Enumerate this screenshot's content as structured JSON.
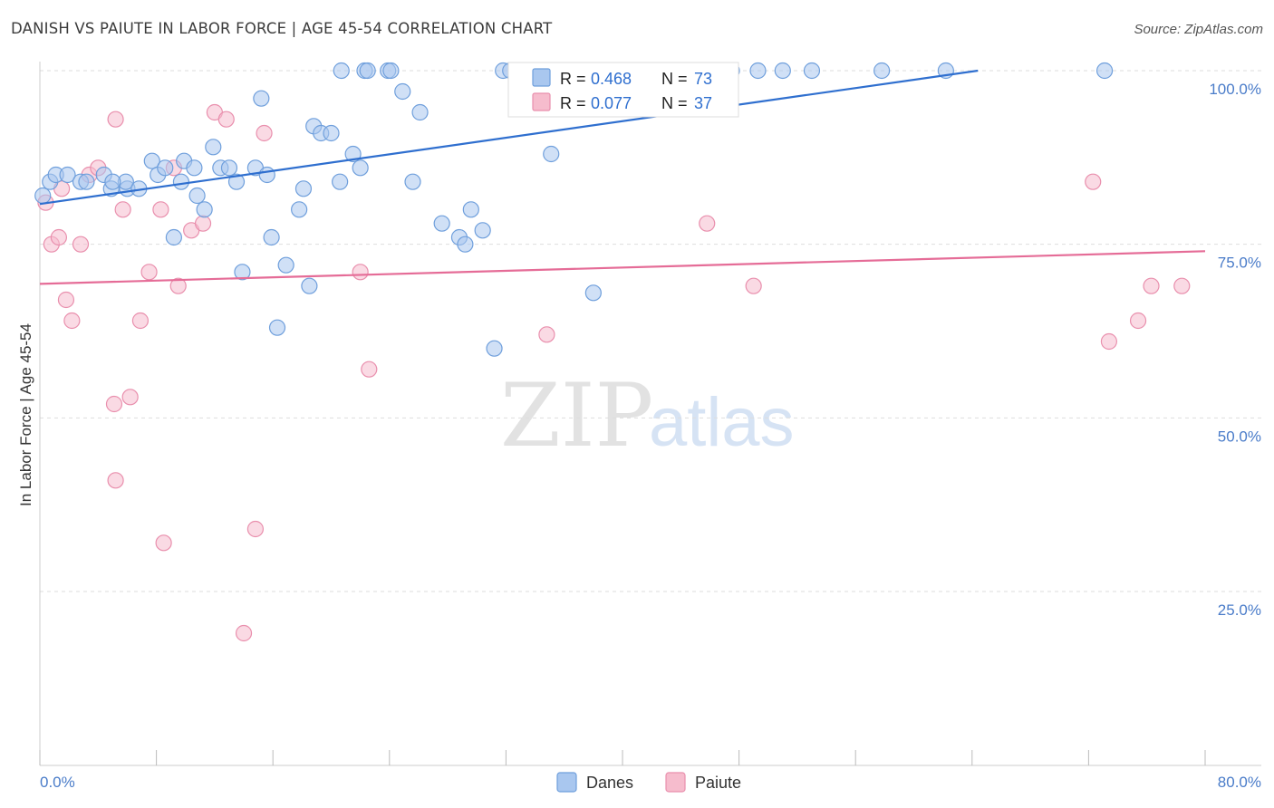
{
  "header": {
    "title": "DANISH VS PAIUTE IN LABOR FORCE | AGE 45-54 CORRELATION CHART",
    "source": "Source: ZipAtlas.com"
  },
  "colors": {
    "danes_fill": "#a9c7ef",
    "danes_stroke": "#6f9fdc",
    "danes_line": "#2f6fcf",
    "paiute_fill": "#f6bccd",
    "paiute_stroke": "#e98fad",
    "paiute_line": "#e56c97",
    "tick_text": "#4a7cc9",
    "grid": "#dddddd"
  },
  "watermark": {
    "zip": "ZIP",
    "atlas": "atlas"
  },
  "stats": {
    "danes": {
      "r_label": "R = ",
      "r_value": "0.468",
      "n_label": "N = ",
      "n_value": "73"
    },
    "paiute": {
      "r_label": "R = ",
      "r_value": "0.077",
      "n_label": "N = ",
      "n_value": "37"
    }
  },
  "chart_data": {
    "type": "scatter",
    "title": "DANISH VS PAIUTE IN LABOR FORCE | AGE 45-54 CORRELATION CHART",
    "xlabel": "",
    "ylabel": "In Labor Force | Age 45-54",
    "xlim": [
      0,
      80
    ],
    "ylim": [
      0,
      102
    ],
    "x_tick_labels": [
      "0.0%",
      "80.0%"
    ],
    "y_ticks": [
      25,
      50,
      75,
      100
    ],
    "y_tick_labels": [
      "25.0%",
      "50.0%",
      "75.0%",
      "100.0%"
    ],
    "legend": [
      "Danes",
      "Paiute"
    ],
    "series": [
      {
        "name": "Danes",
        "trend": {
          "x0": 0,
          "y0": 80.8,
          "x1": 64.4,
          "y1": 100
        },
        "points": [
          [
            0.2,
            82
          ],
          [
            0.7,
            84
          ],
          [
            1.1,
            85
          ],
          [
            1.9,
            85
          ],
          [
            2.8,
            84
          ],
          [
            3.2,
            84
          ],
          [
            4.4,
            85
          ],
          [
            4.9,
            83
          ],
          [
            6.0,
            83
          ],
          [
            5.9,
            84
          ],
          [
            6.8,
            83
          ],
          [
            5.0,
            84
          ],
          [
            7.7,
            87
          ],
          [
            8.1,
            85
          ],
          [
            8.6,
            86
          ],
          [
            9.2,
            76
          ],
          [
            9.7,
            84
          ],
          [
            9.9,
            87
          ],
          [
            10.6,
            86
          ],
          [
            10.8,
            82
          ],
          [
            11.3,
            80
          ],
          [
            11.9,
            89
          ],
          [
            12.4,
            86
          ],
          [
            13.0,
            86
          ],
          [
            13.5,
            84
          ],
          [
            13.9,
            71
          ],
          [
            14.8,
            86
          ],
          [
            15.2,
            96
          ],
          [
            15.6,
            85
          ],
          [
            15.9,
            76
          ],
          [
            16.3,
            63
          ],
          [
            16.9,
            72
          ],
          [
            17.8,
            80
          ],
          [
            18.1,
            83
          ],
          [
            18.5,
            69
          ],
          [
            18.8,
            92
          ],
          [
            19.3,
            91
          ],
          [
            20.0,
            91
          ],
          [
            20.6,
            84
          ],
          [
            21.5,
            88
          ],
          [
            22.0,
            86
          ],
          [
            20.7,
            100
          ],
          [
            22.3,
            100
          ],
          [
            22.5,
            100
          ],
          [
            23.9,
            100
          ],
          [
            24.1,
            100
          ],
          [
            24.9,
            97
          ],
          [
            25.6,
            84
          ],
          [
            26.1,
            94
          ],
          [
            27.6,
            78
          ],
          [
            28.8,
            76
          ],
          [
            29.2,
            75
          ],
          [
            29.6,
            80
          ],
          [
            30.4,
            77
          ],
          [
            31.2,
            60
          ],
          [
            31.8,
            100
          ],
          [
            35.1,
            88
          ],
          [
            38.0,
            68
          ],
          [
            39.0,
            100
          ],
          [
            42.8,
            100
          ],
          [
            44.5,
            100
          ],
          [
            47.5,
            100
          ],
          [
            49.3,
            100
          ],
          [
            51.0,
            100
          ],
          [
            53.0,
            100
          ],
          [
            57.8,
            100
          ],
          [
            62.2,
            100
          ],
          [
            73.1,
            100
          ],
          [
            32.3,
            100
          ],
          [
            34.6,
            100
          ],
          [
            35.8,
            100
          ],
          [
            41.4,
            100
          ],
          [
            45.1,
            100
          ]
        ]
      },
      {
        "name": "Paiute",
        "trend": {
          "x0": 0,
          "y0": 69.3,
          "x1": 80,
          "y1": 74
        },
        "points": [
          [
            0.4,
            81
          ],
          [
            0.8,
            75
          ],
          [
            1.3,
            76
          ],
          [
            1.8,
            67
          ],
          [
            2.2,
            64
          ],
          [
            2.8,
            75
          ],
          [
            3.4,
            85
          ],
          [
            4.0,
            86
          ],
          [
            5.1,
            52
          ],
          [
            5.2,
            41
          ],
          [
            5.2,
            93
          ],
          [
            5.7,
            80
          ],
          [
            6.2,
            53
          ],
          [
            6.9,
            64
          ],
          [
            7.5,
            71
          ],
          [
            8.3,
            80
          ],
          [
            8.5,
            32
          ],
          [
            9.5,
            69
          ],
          [
            10.4,
            77
          ],
          [
            11.2,
            78
          ],
          [
            12.0,
            94
          ],
          [
            12.8,
            93
          ],
          [
            14.0,
            19
          ],
          [
            14.8,
            34
          ],
          [
            15.4,
            91
          ],
          [
            22.0,
            71
          ],
          [
            22.6,
            57
          ],
          [
            34.8,
            62
          ],
          [
            45.8,
            78
          ],
          [
            49.0,
            69
          ],
          [
            72.3,
            84
          ],
          [
            73.4,
            61
          ],
          [
            75.4,
            64
          ],
          [
            76.3,
            69
          ],
          [
            78.4,
            69
          ],
          [
            1.5,
            83
          ],
          [
            9.2,
            86
          ]
        ]
      }
    ]
  }
}
